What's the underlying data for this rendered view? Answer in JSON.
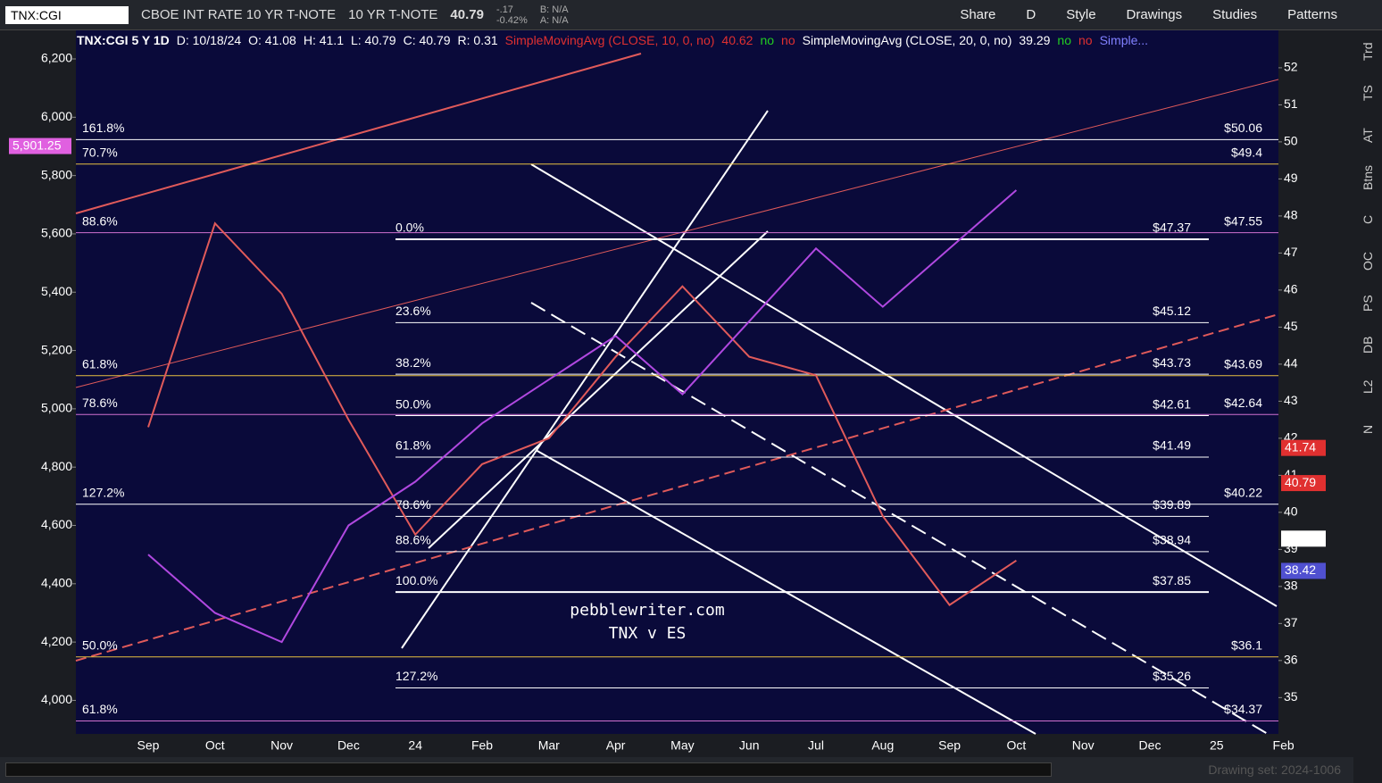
{
  "toolbar": {
    "symbol": "TNX:CGI",
    "description": "CBOE INT RATE 10 YR T-NOTE",
    "short_name": "10 YR T-NOTE",
    "last": "40.79",
    "change": "-.17",
    "change_pct": "-0.42%",
    "bid": "B: N/A",
    "ask": "A: N/A",
    "buttons": [
      "Share",
      "D",
      "Style",
      "Drawings",
      "Studies",
      "Patterns"
    ]
  },
  "chart_header": {
    "study": "TNX:CGI 5 Y 1D",
    "date": "D: 10/18/24",
    "open": "O: 41.08",
    "high": "H: 41.1",
    "low": "L: 40.79",
    "close": "C: 40.79",
    "range": "R: 0.31",
    "sma10": "SimpleMovingAvg (CLOSE, 10, 0, no)",
    "sma10_value": "40.62",
    "sma20": "SimpleMovingAvg (CLOSE, 20, 0, no)",
    "sma20_value": "39.29",
    "flag_yes": "no",
    "flag_no": "no",
    "more": "Simple..."
  },
  "sidebar": [
    "Trd",
    "TS",
    "AT",
    "Btns",
    "C",
    "OC",
    "PS",
    "DB",
    "L2",
    "N"
  ],
  "footer": {
    "drawing_set": "Drawing set: 2024-1006"
  },
  "watermark": [
    "pebblewriter.com",
    "TNX v ES"
  ],
  "chart_data": {
    "type": "line",
    "categories": [
      "Sep",
      "Oct",
      "Nov",
      "Dec",
      "24",
      "Feb",
      "Mar",
      "Apr",
      "May",
      "Jun",
      "Jul",
      "Aug",
      "Sep",
      "Oct",
      "Nov",
      "Dec",
      "25",
      "Feb"
    ],
    "series": [
      {
        "name": "TNX",
        "color": "#e05a5a",
        "axis": "y2",
        "values": [
          42.3,
          47.8,
          45.9,
          42.5,
          39.4,
          41.3,
          42.0,
          44.2,
          46.1,
          44.2,
          43.7,
          39.9,
          37.5,
          38.7,
          null,
          null,
          null,
          null
        ]
      },
      {
        "name": "ES",
        "color": "#b048e0",
        "values": [
          4500,
          4300,
          4200,
          4600,
          4750,
          4950,
          5100,
          5250,
          5050,
          5300,
          5550,
          5350,
          5550,
          5750,
          null,
          null,
          null,
          null
        ]
      }
    ],
    "ylim": [
      3885,
      6298
    ],
    "yticks": [
      {
        "value": 6200,
        "label": "6,200"
      },
      {
        "value": 6000,
        "label": "6,000"
      },
      {
        "value": 5800,
        "label": "5,800"
      },
      {
        "value": 5600,
        "label": "5,600"
      },
      {
        "value": 5400,
        "label": "5,400"
      },
      {
        "value": 5200,
        "label": "5,200"
      },
      {
        "value": 5000,
        "label": "5,000"
      },
      {
        "value": 4800,
        "label": "4,800"
      },
      {
        "value": 4600,
        "label": "4,600"
      },
      {
        "value": 4400,
        "label": "4,400"
      },
      {
        "value": 4200,
        "label": "4,200"
      },
      {
        "value": 4000,
        "label": "4,000"
      }
    ],
    "y2lim": [
      34.02,
      53.01
    ],
    "y2ticks": [
      52,
      51,
      50,
      49,
      48,
      47,
      46,
      45,
      44,
      43,
      42,
      41,
      40,
      39,
      38,
      37,
      36,
      35
    ],
    "left_tag": {
      "value": 5901.25,
      "label": "5,901.25",
      "color": "#e060e0"
    },
    "price_tags": [
      {
        "value": 41.74,
        "color": "#e03030"
      },
      {
        "value": 40.79,
        "color": "#e03030"
      },
      {
        "value": 39.29,
        "color": "#ffffff"
      },
      {
        "value": 38.42,
        "color": "#5050d0"
      }
    ],
    "fib_center": [
      {
        "label": "0.0%",
        "price": {
          "value": 47.37,
          "label": "$47.37"
        }
      },
      {
        "label": "23.6%",
        "price": {
          "value": 45.12,
          "label": "$45.12"
        }
      },
      {
        "label": "38.2%",
        "price": {
          "value": 43.73,
          "label": "$43.73"
        }
      },
      {
        "label": "50.0%",
        "price": {
          "value": 42.61,
          "label": "$42.61"
        }
      },
      {
        "label": "61.8%",
        "price": {
          "value": 41.49,
          "label": "$41.49"
        }
      },
      {
        "label": "78.6%",
        "price": {
          "value": 39.89,
          "label": "$39.89"
        }
      },
      {
        "label": "88.6%",
        "price": {
          "value": 38.94,
          "label": "$38.94"
        }
      },
      {
        "label": "100.0%",
        "price": {
          "value": 37.85,
          "label": "$37.85"
        }
      },
      {
        "label": "127.2%",
        "price": {
          "value": 35.26,
          "label": "$35.26"
        }
      }
    ],
    "fib_outer": [
      {
        "label": "161.8%",
        "color": "#ffffff",
        "price": {
          "value": 50.06,
          "label": "$50.06"
        }
      },
      {
        "label": "70.7%",
        "color": "#e8c040",
        "price": {
          "value": 49.4,
          "label": "$49.4"
        }
      },
      {
        "label": "88.6%",
        "color": "#d070d0",
        "price": {
          "value": 47.55,
          "label": "$47.55"
        }
      },
      {
        "label": "61.8%",
        "color": "#e8c040",
        "price": {
          "value": 43.69,
          "label": "$43.69"
        }
      },
      {
        "label": "78.6%",
        "color": "#d070d0",
        "price": {
          "value": 42.64,
          "label": "$42.64"
        }
      },
      {
        "label": "127.2%",
        "color": "#ffffff",
        "price": {
          "value": 40.22,
          "label": "$40.22"
        }
      },
      {
        "label": "50.0%",
        "color": "#e8c040",
        "price": {
          "value": 36.1,
          "label": "$36.1"
        }
      },
      {
        "label": "61.8%",
        "color": "#d070d0",
        "price": {
          "value": 34.37,
          "label": "$34.37"
        }
      }
    ]
  }
}
